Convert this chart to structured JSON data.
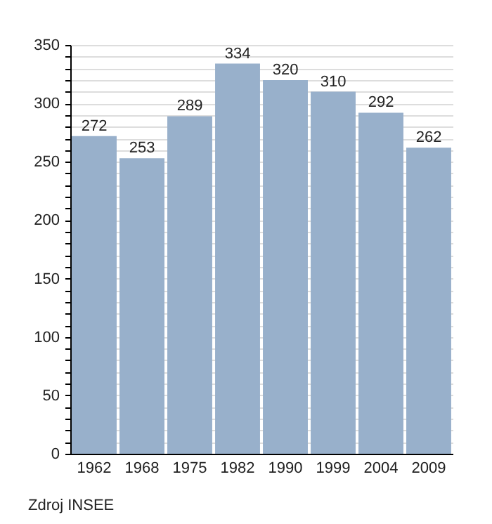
{
  "chart_data": {
    "type": "bar",
    "categories": [
      "1962",
      "1968",
      "1975",
      "1982",
      "1990",
      "1999",
      "2004",
      "2009"
    ],
    "values": [
      272,
      253,
      289,
      334,
      320,
      310,
      292,
      262
    ],
    "color": "#98b0cb",
    "data_labels": true,
    "grid": "y",
    "ylim": [
      0,
      350
    ],
    "yticks": [
      0,
      {
        "value": 10,
        "label": null
      },
      {
        "value": 20,
        "label": null
      },
      {
        "value": 30,
        "label": null
      },
      {
        "value": 40,
        "label": null
      },
      50,
      {
        "value": 60,
        "label": null
      },
      {
        "value": 70,
        "label": null
      },
      {
        "value": 80,
        "label": null
      },
      {
        "value": 90,
        "label": null
      },
      100,
      {
        "value": 110,
        "label": null
      },
      {
        "value": 120,
        "label": null
      },
      {
        "value": 130,
        "label": null
      },
      {
        "value": 140,
        "label": null
      },
      150,
      {
        "value": 160,
        "label": null
      },
      {
        "value": 170,
        "label": null
      },
      {
        "value": 180,
        "label": null
      },
      {
        "value": 190,
        "label": null
      },
      200,
      {
        "value": 210,
        "label": null
      },
      {
        "value": 220,
        "label": null
      },
      {
        "value": 230,
        "label": null
      },
      {
        "value": 240,
        "label": null
      },
      250,
      {
        "value": 260,
        "label": null
      },
      {
        "value": 270,
        "label": null
      },
      {
        "value": 280,
        "label": null
      },
      {
        "value": 290,
        "label": null
      },
      300,
      {
        "value": 310,
        "label": null
      },
      {
        "value": 320,
        "label": null
      },
      {
        "value": 330,
        "label": null
      },
      {
        "value": 340,
        "label": null
      },
      350
    ],
    "annotations": [
      "Zdroj INSEE"
    ]
  }
}
